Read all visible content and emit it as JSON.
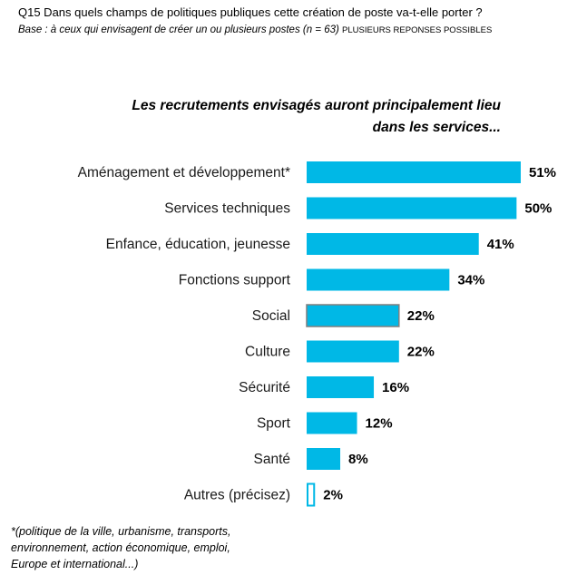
{
  "question": {
    "title": "Q15 Dans quels champs de politiques publiques cette création de poste va-t-elle porter ?",
    "base": "Base : à ceux qui envisagent de créer un ou plusieurs postes (n = 63)",
    "base_note": "PLUSIEURS REPONSES POSSIBLES"
  },
  "subtitle": {
    "line1": "Les recrutements envisagés auront principalement lieu",
    "line2": "dans  les services..."
  },
  "footnote": {
    "line1": "*(politique de la ville, urbanisme, transports,",
    "line2": "environnement, action économique, emploi,",
    "line3": "Europe et international...)"
  },
  "colors": {
    "bar": "#00B8E6",
    "bar_outlined": "#7F7F7F"
  },
  "chart_data": {
    "type": "bar",
    "orientation": "horizontal",
    "title": "Les recrutements envisagés auront principalement lieu dans  les services...",
    "xlabel": "",
    "ylabel": "",
    "xlim": [
      0,
      51
    ],
    "grid": false,
    "categories": [
      "Aménagement et développement*",
      "Services techniques",
      "Enfance, éducation, jeunesse",
      "Fonctions support",
      "Social",
      "Culture",
      "Sécurité",
      "Sport",
      "Santé",
      "Autres (précisez)"
    ],
    "values": [
      51,
      50,
      41,
      34,
      22,
      22,
      16,
      12,
      8,
      2
    ],
    "value_labels": [
      "51%",
      "50%",
      "41%",
      "34%",
      "22%",
      "22%",
      "16%",
      "12%",
      "8%",
      "2%"
    ],
    "outlined": [
      false,
      false,
      false,
      false,
      true,
      false,
      false,
      false,
      false,
      true
    ]
  }
}
